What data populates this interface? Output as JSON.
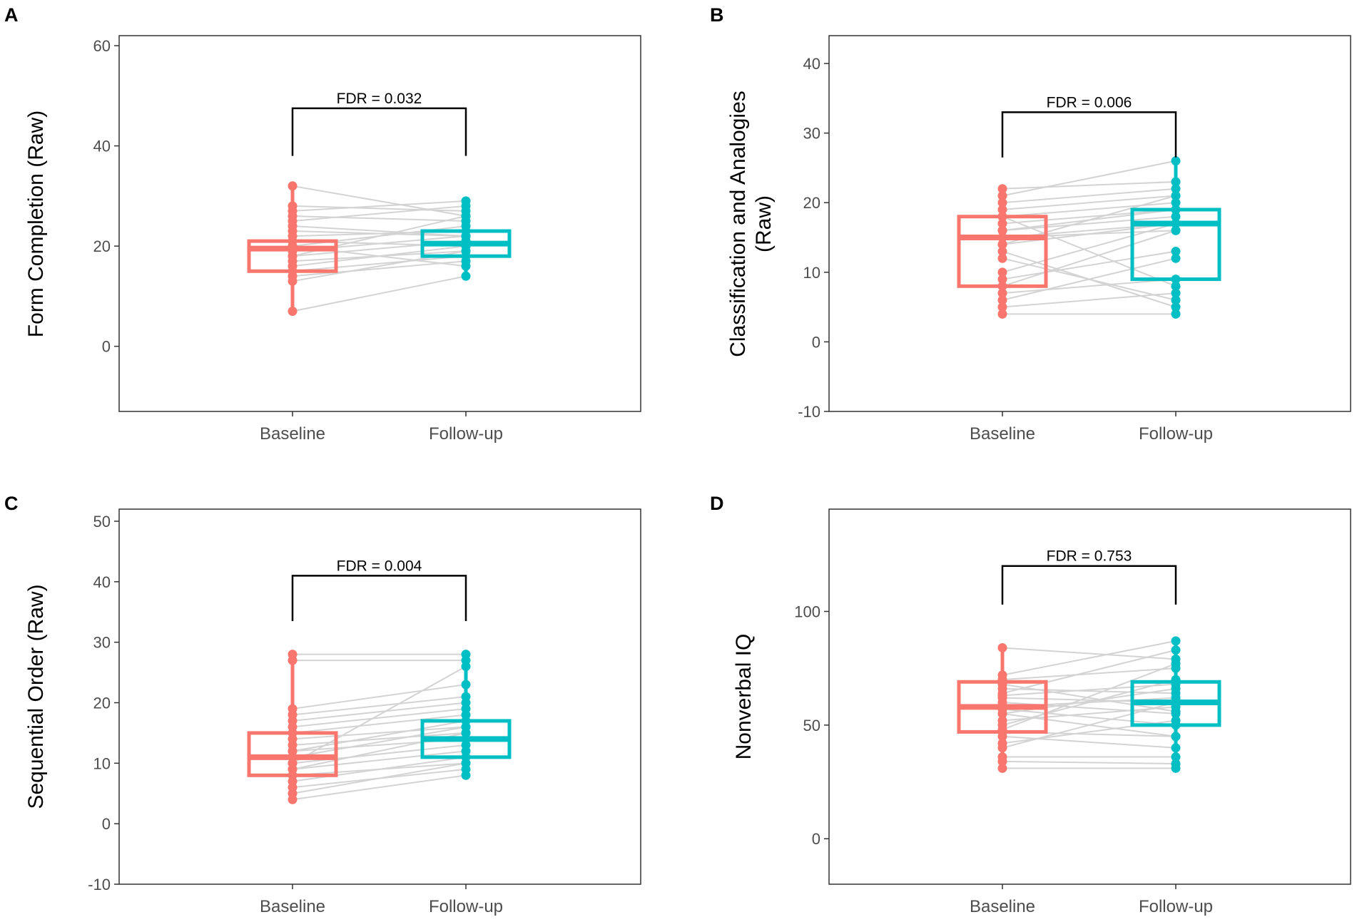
{
  "colors": {
    "baseline": "#F8766D",
    "followup": "#00BFC4",
    "pair_line": "#d3d3d3",
    "frame": "#333333"
  },
  "chart_data": [
    {
      "panel": "A",
      "type": "box",
      "ylabel": "Form Completion (Raw)",
      "categories": [
        "Baseline",
        "Follow-up"
      ],
      "ylim": [
        -13,
        62
      ],
      "yticks": [
        0,
        20,
        40,
        60
      ],
      "annotation": "FDR = 0.032",
      "bracket_y": [
        38,
        47.5
      ],
      "boxes": [
        {
          "name": "Baseline",
          "q1": 15,
          "median": 19.5,
          "q3": 21,
          "min": 7,
          "max": 32
        },
        {
          "name": "Follow-up",
          "q1": 18,
          "median": 20.5,
          "q3": 23,
          "min": 14,
          "max": 29
        }
      ],
      "pairs": [
        [
          32,
          26
        ],
        [
          28,
          27
        ],
        [
          27,
          29
        ],
        [
          26,
          25
        ],
        [
          25,
          28
        ],
        [
          24,
          22
        ],
        [
          23,
          22
        ],
        [
          22,
          23
        ],
        [
          21,
          20
        ],
        [
          20,
          24
        ],
        [
          19,
          22
        ],
        [
          18,
          21
        ],
        [
          17,
          19
        ],
        [
          16,
          20
        ],
        [
          15,
          18
        ],
        [
          14,
          17
        ],
        [
          13,
          19
        ],
        [
          7,
          14
        ],
        [
          20,
          16
        ],
        [
          18,
          26
        ]
      ]
    },
    {
      "panel": "B",
      "type": "box",
      "ylabel": "Classification and Analogies (Raw)",
      "categories": [
        "Baseline",
        "Follow-up"
      ],
      "ylim": [
        -10,
        44
      ],
      "yticks": [
        -10,
        0,
        10,
        20,
        30,
        40
      ],
      "annotation": "FDR = 0.006",
      "bracket_y": [
        26.5,
        33
      ],
      "boxes": [
        {
          "name": "Baseline",
          "q1": 8,
          "median": 15,
          "q3": 18,
          "min": 4,
          "max": 22
        },
        {
          "name": "Follow-up",
          "q1": 9,
          "median": 17,
          "q3": 19,
          "min": 4,
          "max": 26
        }
      ],
      "pairs": [
        [
          22,
          23
        ],
        [
          21,
          26
        ],
        [
          20,
          22
        ],
        [
          19,
          21
        ],
        [
          18,
          20
        ],
        [
          17,
          19
        ],
        [
          16,
          18
        ],
        [
          15,
          17
        ],
        [
          15,
          16
        ],
        [
          14,
          17
        ],
        [
          13,
          5
        ],
        [
          9,
          13
        ],
        [
          8,
          16
        ],
        [
          7,
          9
        ],
        [
          6,
          12
        ],
        [
          5,
          7
        ],
        [
          4,
          4
        ],
        [
          12,
          6
        ],
        [
          10,
          17
        ],
        [
          18,
          8
        ],
        [
          16,
          19
        ],
        [
          14,
          21
        ]
      ]
    },
    {
      "panel": "C",
      "type": "box",
      "ylabel": "Sequential Order (Raw)",
      "categories": [
        "Baseline",
        "Follow-up"
      ],
      "ylim": [
        -10,
        52
      ],
      "yticks": [
        -10,
        0,
        10,
        20,
        30,
        40,
        50
      ],
      "annotation": "FDR = 0.004",
      "bracket_y": [
        33.5,
        41
      ],
      "boxes": [
        {
          "name": "Baseline",
          "q1": 8,
          "median": 11,
          "q3": 15,
          "min": 4,
          "max": 28
        },
        {
          "name": "Follow-up",
          "q1": 11,
          "median": 14,
          "q3": 17,
          "min": 8,
          "max": 28
        }
      ],
      "pairs": [
        [
          28,
          28
        ],
        [
          27,
          27
        ],
        [
          19,
          23
        ],
        [
          18,
          21
        ],
        [
          17,
          20
        ],
        [
          16,
          19
        ],
        [
          15,
          18
        ],
        [
          14,
          16
        ],
        [
          13,
          15
        ],
        [
          12,
          14
        ],
        [
          11,
          16
        ],
        [
          10,
          13
        ],
        [
          9,
          12
        ],
        [
          8,
          10
        ],
        [
          7,
          11
        ],
        [
          6,
          9
        ],
        [
          5,
          10
        ],
        [
          4,
          8
        ],
        [
          10,
          26
        ],
        [
          12,
          17
        ],
        [
          9,
          15
        ]
      ]
    },
    {
      "panel": "D",
      "type": "box",
      "ylabel": "Nonverbal IQ",
      "categories": [
        "Baseline",
        "Follow-up"
      ],
      "ylim": [
        -20,
        145
      ],
      "yticks": [
        0,
        50,
        100
      ],
      "annotation": "FDR = 0.753",
      "bracket_y": [
        103,
        120
      ],
      "boxes": [
        {
          "name": "Baseline",
          "q1": 47,
          "median": 58,
          "q3": 69,
          "min": 31,
          "max": 84
        },
        {
          "name": "Follow-up",
          "q1": 50,
          "median": 60,
          "q3": 69,
          "min": 31,
          "max": 87
        }
      ],
      "pairs": [
        [
          84,
          79
        ],
        [
          72,
          87
        ],
        [
          70,
          75
        ],
        [
          68,
          56
        ],
        [
          66,
          64
        ],
        [
          64,
          83
        ],
        [
          62,
          60
        ],
        [
          60,
          55
        ],
        [
          58,
          62
        ],
        [
          57,
          50
        ],
        [
          55,
          66
        ],
        [
          52,
          58
        ],
        [
          50,
          70
        ],
        [
          47,
          45
        ],
        [
          45,
          40
        ],
        [
          42,
          52
        ],
        [
          40,
          60
        ],
        [
          36,
          36
        ],
        [
          34,
          33
        ],
        [
          31,
          31
        ],
        [
          48,
          77
        ],
        [
          55,
          45
        ],
        [
          63,
          68
        ]
      ]
    }
  ]
}
